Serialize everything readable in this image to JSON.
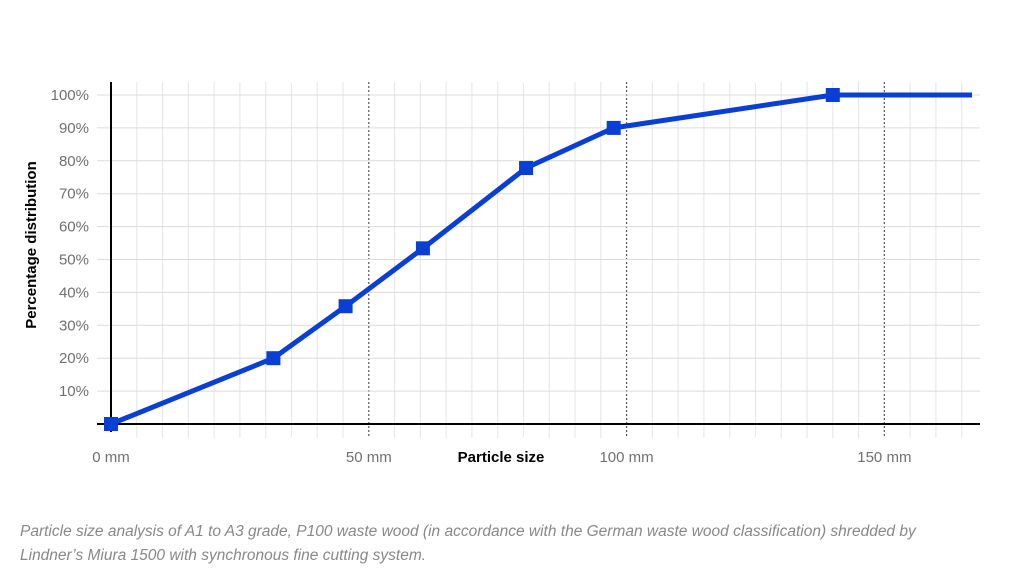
{
  "chart_data": {
    "type": "line",
    "title": "",
    "xlabel": "Particle size",
    "ylabel": "Percentage distribution",
    "xlim": [
      0,
      167
    ],
    "ylim": [
      0,
      100
    ],
    "x_ticks": [
      {
        "value": 0,
        "label": "0 mm"
      },
      {
        "value": 50,
        "label": "50 mm"
      },
      {
        "value": 100,
        "label": "100 mm"
      },
      {
        "value": 150,
        "label": "150 mm"
      }
    ],
    "y_ticks": [
      {
        "value": 10,
        "label": "10%"
      },
      {
        "value": 20,
        "label": "20%"
      },
      {
        "value": 30,
        "label": "30%"
      },
      {
        "value": 40,
        "label": "40%"
      },
      {
        "value": 50,
        "label": "50%"
      },
      {
        "value": 60,
        "label": "60%"
      },
      {
        "value": 70,
        "label": "70%"
      },
      {
        "value": 80,
        "label": "80%"
      },
      {
        "value": 90,
        "label": "90%"
      },
      {
        "value": 100,
        "label": "100%"
      }
    ],
    "grid": true,
    "minor_x_step": 5,
    "major_dotted_x": [
      50,
      100,
      150
    ],
    "series": [
      {
        "color": "#0a3fd6",
        "x": [
          0,
          31.5,
          45.5,
          60.5,
          80.5,
          97.5,
          140,
          167
        ],
        "y": [
          0,
          20,
          35.8,
          53.4,
          77.8,
          90,
          100,
          100
        ],
        "markers": [
          true,
          true,
          true,
          true,
          true,
          true,
          true,
          false
        ]
      }
    ]
  },
  "caption": "Particle size analysis of A1 to A3 grade, P100 waste wood (in accordance with the German waste wood classification) shredded by Lindner’s Miura 1500 with synchronous fine cutting system."
}
